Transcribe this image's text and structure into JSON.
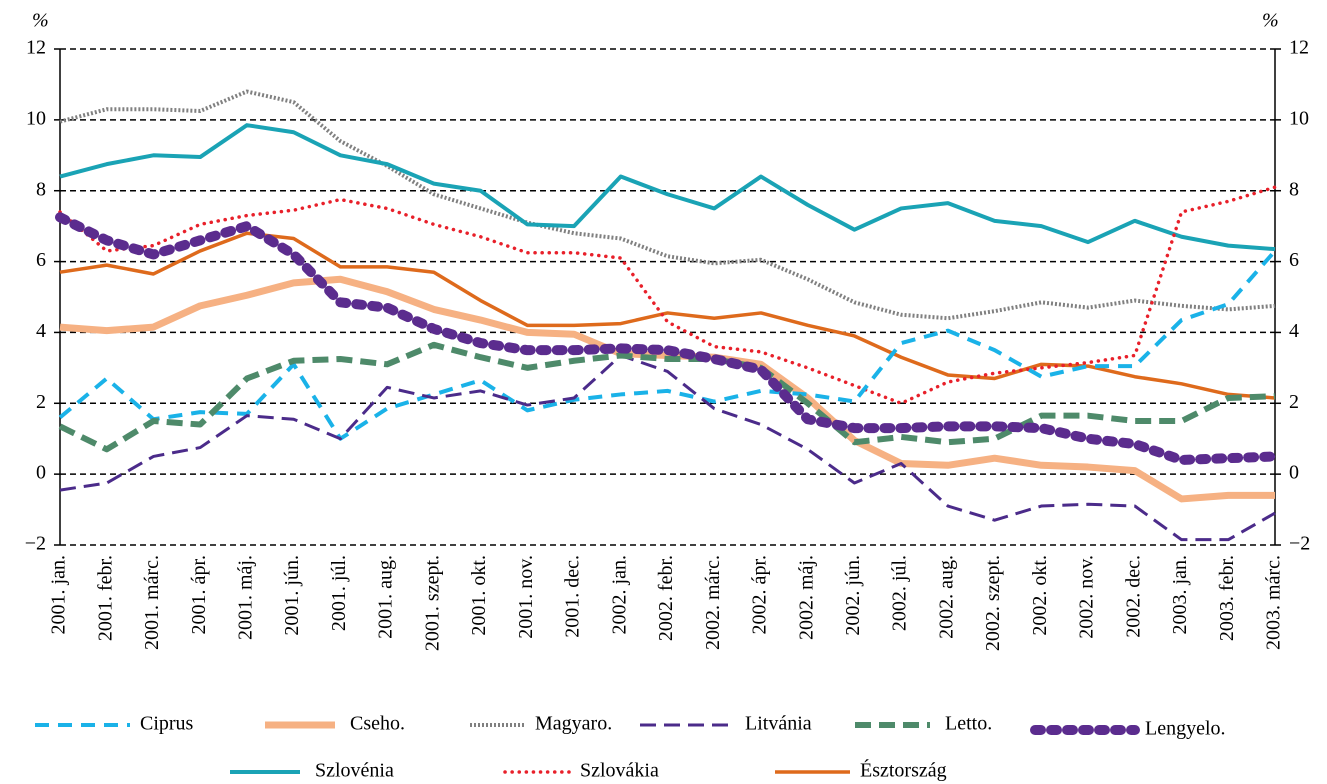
{
  "chart_data": {
    "type": "line",
    "y_label": "%",
    "y2_label": "%",
    "categories": [
      "2001. jan.",
      "2001. febr.",
      "2001. márc.",
      "2001. ápr.",
      "2001. máj.",
      "2001. jún.",
      "2001. júl.",
      "2001. aug.",
      "2001. szept.",
      "2001. okt.",
      "2001. nov.",
      "2001. dec.",
      "2002. jan.",
      "2002. febr.",
      "2002. márc.",
      "2002. ápr.",
      "2002. máj.",
      "2002. jún.",
      "2002. júl.",
      "2002. aug.",
      "2002. szept.",
      "2002. okt.",
      "2002. nov.",
      "2002. dec.",
      "2003. jan.",
      "2003. febr.",
      "2003. márc."
    ],
    "ylim": [
      -2,
      12
    ],
    "yticks": [
      {
        "value": -2,
        "label": "−2"
      },
      0,
      2,
      4,
      6,
      8,
      10,
      12
    ],
    "y2lim": [
      -2,
      12
    ],
    "y2ticks": [
      {
        "value": -2,
        "label": "−2"
      },
      0,
      2,
      4,
      6,
      8,
      10,
      12
    ],
    "grid": true,
    "legend": "bottom",
    "series": [
      {
        "name": "Ciprus",
        "color": "#1ab2e8",
        "linestyle": "dashed",
        "values": [
          1.6,
          2.7,
          1.55,
          1.75,
          1.7,
          3.1,
          1.0,
          1.85,
          2.25,
          2.65,
          1.8,
          2.1,
          2.25,
          2.35,
          2.05,
          2.35,
          2.25,
          2.05,
          3.7,
          4.05,
          3.5,
          2.75,
          3.05,
          3.05,
          4.35,
          4.8,
          6.3
        ]
      },
      {
        "name": "Cseho.",
        "color": "#f6b183",
        "linestyle": "solid",
        "values": [
          4.15,
          4.05,
          4.15,
          4.75,
          5.05,
          5.4,
          5.5,
          5.15,
          4.65,
          4.35,
          4.0,
          3.95,
          3.4,
          3.35,
          3.3,
          3.1,
          2.15,
          0.95,
          0.3,
          0.25,
          0.45,
          0.25,
          0.2,
          0.1,
          -0.7,
          -0.6,
          -0.6
        ]
      },
      {
        "name": "Magyaro.",
        "color": "#808080",
        "linestyle": "dotted",
        "values": [
          9.95,
          10.3,
          10.3,
          10.25,
          10.8,
          10.5,
          9.4,
          8.7,
          7.9,
          7.5,
          7.1,
          6.8,
          6.65,
          6.15,
          5.95,
          6.05,
          5.5,
          4.85,
          4.5,
          4.4,
          4.6,
          4.85,
          4.7,
          4.9,
          4.75,
          4.65,
          4.75
        ]
      },
      {
        "name": "Litvánia",
        "color": "#4b2b8a",
        "linestyle": "dashed",
        "values": [
          -0.45,
          -0.25,
          0.5,
          0.75,
          1.65,
          1.55,
          1.0,
          2.45,
          2.15,
          2.35,
          1.95,
          2.15,
          3.35,
          2.9,
          1.85,
          1.4,
          0.7,
          -0.25,
          0.3,
          -0.9,
          -1.3,
          -0.9,
          -0.85,
          -0.9,
          -1.85,
          -1.85,
          -1.1
        ]
      },
      {
        "name": "Letto.",
        "color": "#4e8a6a",
        "linestyle": "dashed",
        "values": [
          1.35,
          0.7,
          1.5,
          1.4,
          2.7,
          3.2,
          3.25,
          3.1,
          3.65,
          3.3,
          3.0,
          3.2,
          3.35,
          3.25,
          3.25,
          3.0,
          2.0,
          0.9,
          1.05,
          0.9,
          1.0,
          1.65,
          1.65,
          1.5,
          1.5,
          2.15,
          2.2
        ]
      },
      {
        "name": "Lengyelo.",
        "color": "#5b2c8e",
        "linestyle": "dotted",
        "values": [
          7.25,
          6.6,
          6.2,
          6.6,
          7.0,
          6.2,
          4.85,
          4.7,
          4.1,
          3.7,
          3.5,
          3.5,
          3.55,
          3.5,
          3.25,
          2.95,
          1.55,
          1.3,
          1.3,
          1.35,
          1.35,
          1.3,
          1.0,
          0.85,
          0.4,
          0.45,
          0.5
        ]
      },
      {
        "name": "Szlovénia",
        "color": "#1aa3b5",
        "linestyle": "solid",
        "values": [
          8.4,
          8.75,
          9.0,
          8.95,
          9.85,
          9.65,
          9.0,
          8.75,
          8.2,
          8.0,
          7.05,
          7.0,
          8.4,
          7.9,
          7.5,
          8.4,
          7.6,
          6.9,
          7.5,
          7.65,
          7.15,
          7.0,
          6.55,
          7.15,
          6.7,
          6.45,
          6.35
        ]
      },
      {
        "name": "Szlovákia",
        "color": "#e8202a",
        "linestyle": "dotted",
        "values": [
          7.4,
          6.3,
          6.45,
          7.05,
          7.3,
          7.45,
          7.75,
          7.5,
          7.05,
          6.7,
          6.25,
          6.25,
          6.1,
          4.3,
          3.6,
          3.45,
          3.0,
          2.5,
          2.0,
          2.6,
          2.85,
          3.0,
          3.15,
          3.35,
          7.4,
          7.7,
          8.1
        ]
      },
      {
        "name": "Észtország",
        "color": "#de6a1c",
        "linestyle": "solid",
        "values": [
          5.7,
          5.9,
          5.65,
          6.3,
          6.8,
          6.65,
          5.85,
          5.85,
          5.7,
          4.9,
          4.2,
          4.2,
          4.25,
          4.55,
          4.4,
          4.55,
          4.2,
          3.9,
          3.3,
          2.8,
          2.7,
          3.1,
          3.05,
          2.75,
          2.55,
          2.25,
          2.15
        ]
      }
    ]
  }
}
